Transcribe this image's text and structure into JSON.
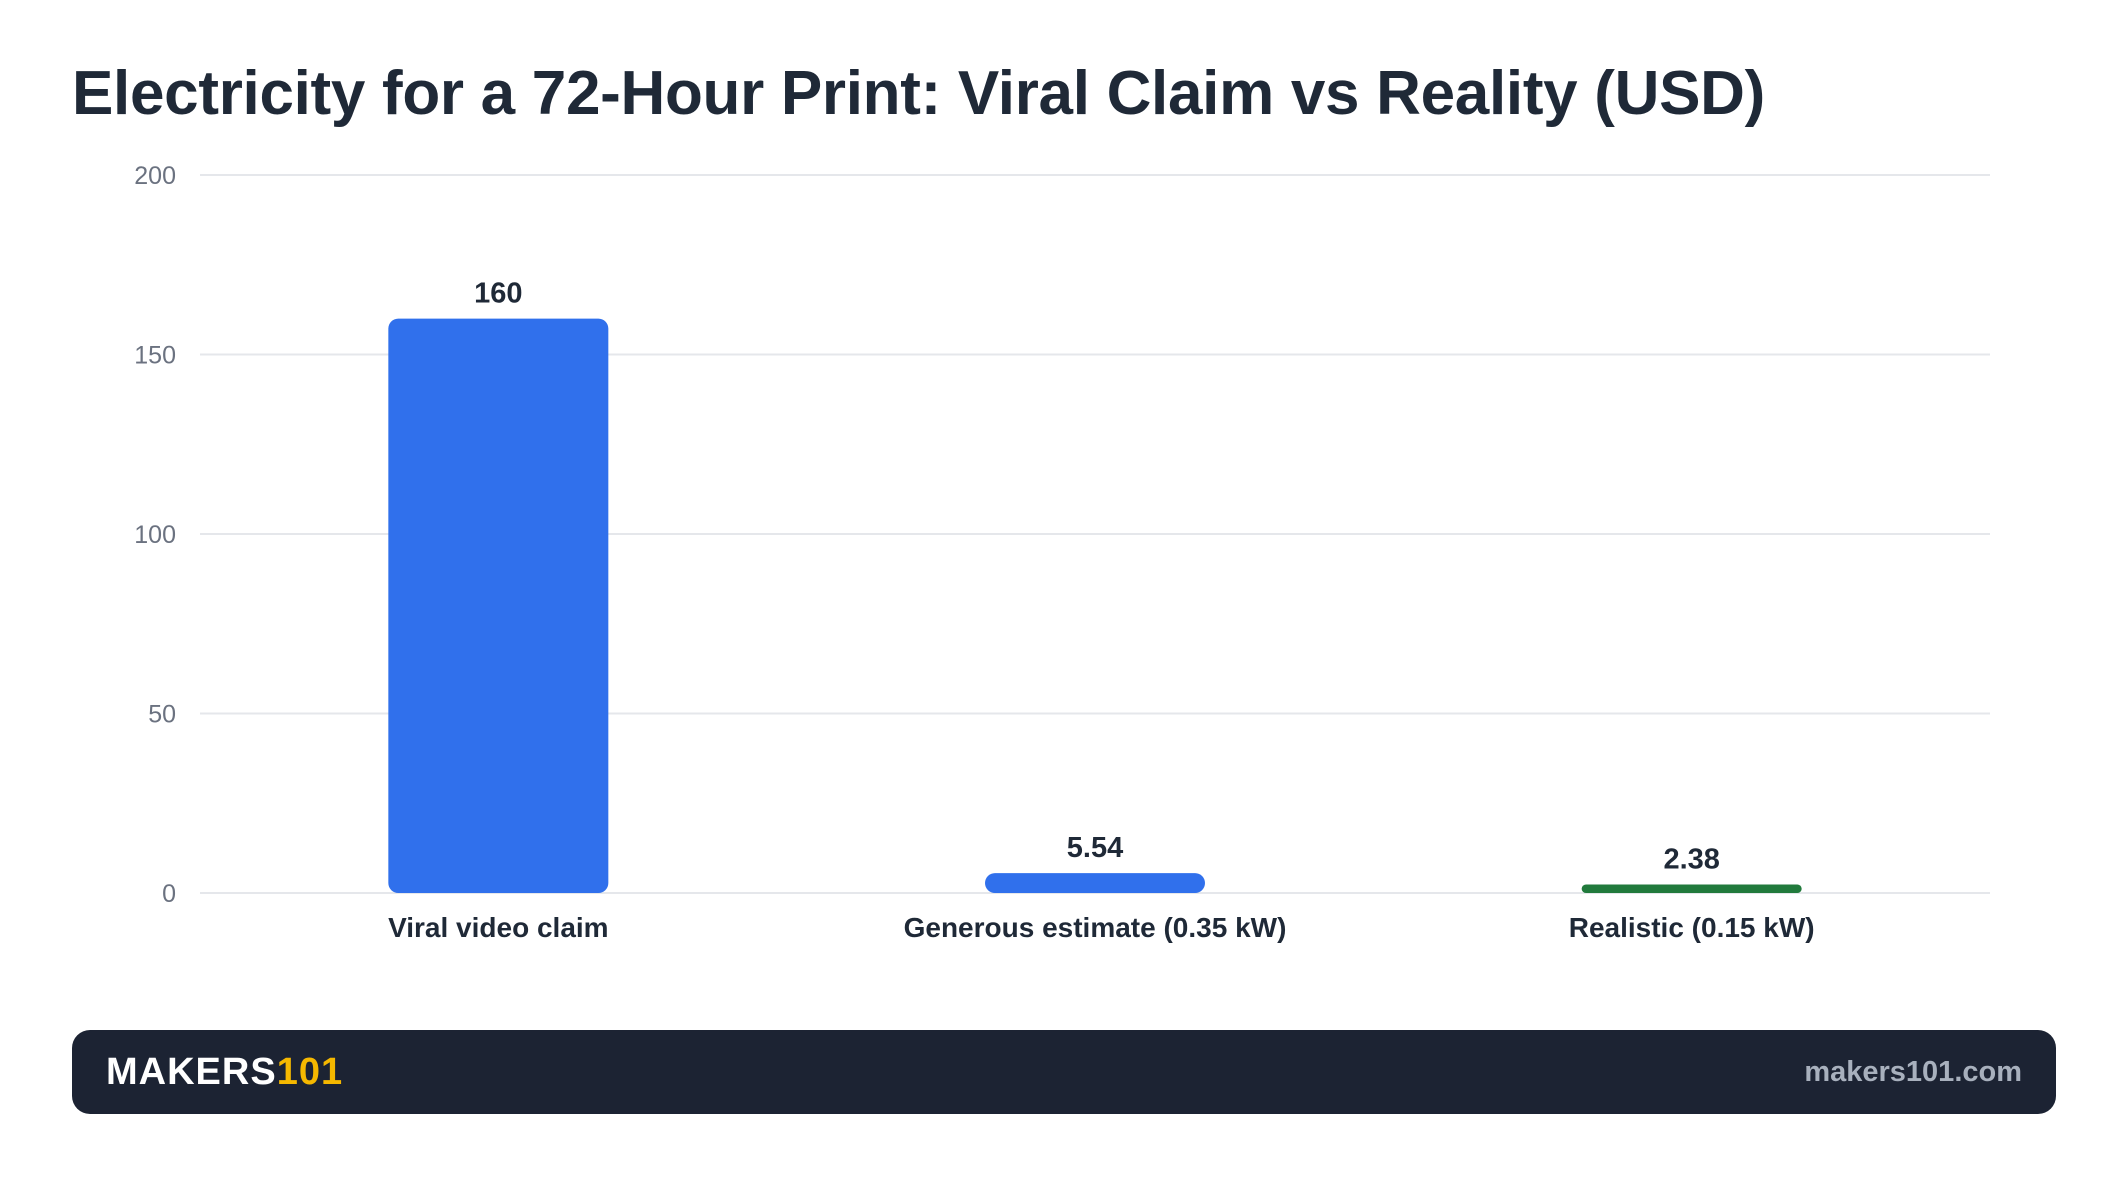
{
  "chart_data": {
    "type": "bar",
    "title": "Electricity for a 72-Hour Print: Viral Claim vs Reality (USD)",
    "xlabel": "",
    "ylabel": "",
    "categories": [
      "Viral video claim",
      "Generous estimate (0.35 kW)",
      "Realistic (0.15 kW)"
    ],
    "values": [
      160,
      5.54,
      2.38
    ],
    "value_labels": [
      "160",
      "5.54",
      "2.38"
    ],
    "bar_colors": [
      "#3070ec",
      "#3070ec",
      "#217a3c"
    ],
    "ylim": [
      0,
      200
    ],
    "yticks": [
      0,
      50,
      100,
      150,
      200
    ],
    "grid": true,
    "legend": "none"
  },
  "footer": {
    "brand_main": "MAKERS",
    "brand_accent": "101",
    "site": "makers101.com"
  },
  "colors": {
    "text": "#1f2937",
    "axis_text": "#6b7280",
    "grid": "#e5e7eb",
    "footer_bg": "#1c2333",
    "brand_accent": "#f5b800",
    "site_text": "#a8b0bd"
  }
}
